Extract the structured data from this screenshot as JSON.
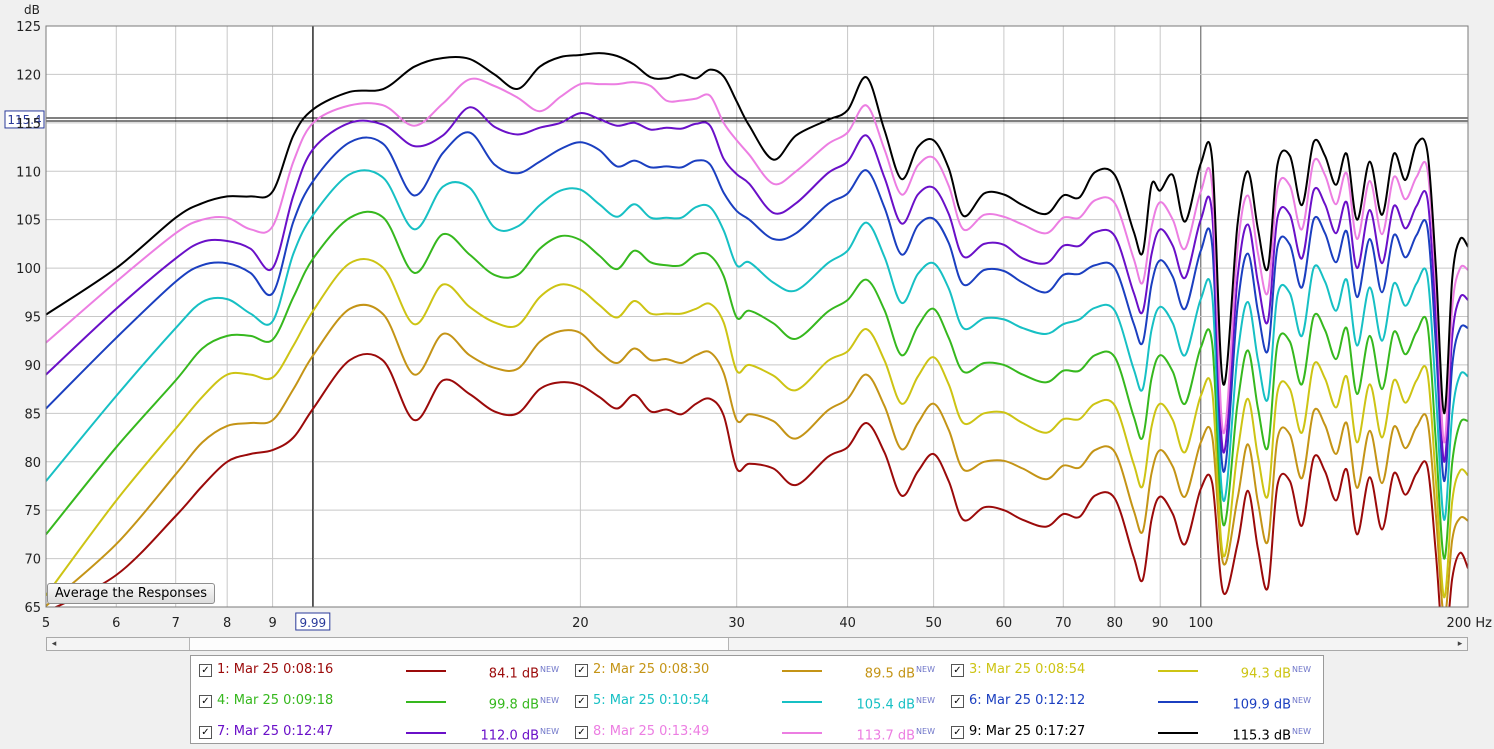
{
  "chart_data": {
    "type": "line",
    "ylabel": "dB",
    "xunit": "Hz",
    "xscale": "log",
    "xlim": [
      5,
      200
    ],
    "ylim": [
      65,
      125
    ],
    "yticks": [
      65,
      70,
      75,
      80,
      85,
      90,
      95,
      100,
      105,
      110,
      115,
      120,
      125
    ],
    "xticks": [
      5,
      6,
      7,
      8,
      9,
      20,
      30,
      40,
      50,
      60,
      70,
      80,
      90,
      100,
      200
    ],
    "xtick_labels": [
      "5",
      "6",
      "7",
      "8",
      "9",
      "20",
      "30",
      "40",
      "50",
      "60",
      "70",
      "80",
      "90",
      "100",
      "200 Hz"
    ],
    "grid": true,
    "cursor": {
      "x": 9.99,
      "x_label": "9.99",
      "y": 115.4,
      "y_label": "115.4"
    },
    "x": [
      5,
      6,
      7,
      7.5,
      8,
      8.5,
      9,
      9.5,
      10,
      11,
      12,
      13,
      14,
      15,
      16,
      17,
      18,
      19,
      20,
      21,
      22,
      23,
      24,
      25,
      26,
      27,
      28,
      29,
      30,
      31,
      33,
      35,
      38,
      40,
      42,
      44,
      46,
      48,
      50,
      52,
      54,
      57,
      60,
      63,
      67,
      70,
      73,
      76,
      80,
      84,
      86,
      88,
      90,
      93,
      96,
      100,
      103,
      106,
      110,
      113,
      116,
      119,
      122,
      126,
      130,
      134,
      138,
      142,
      146,
      150,
      155,
      160,
      165,
      170,
      175,
      180,
      184,
      188,
      192,
      196,
      200
    ],
    "series": [
      {
        "name": "1: Mar 25 0:08:16",
        "value_label": "84.1 dB",
        "color": "#9b0a0a",
        "values": [
          64.5,
          68.3,
          74.4,
          77.5,
          80.0,
          80.8,
          81.2,
          82.5,
          85.5,
          90.5,
          90.4,
          84.3,
          88.4,
          87.0,
          85.2,
          85.0,
          87.5,
          88.2,
          87.9,
          86.7,
          85.5,
          86.9,
          85.2,
          85.4,
          84.9,
          86.0,
          86.5,
          84.8,
          79.3,
          79.8,
          79.3,
          77.6,
          80.5,
          81.5,
          84.0,
          81.0,
          76.5,
          79.0,
          80.8,
          78.0,
          74.0,
          75.3,
          75.0,
          74.0,
          73.3,
          74.6,
          74.3,
          76.5,
          76.2,
          70.2,
          67.8,
          74.0,
          76.4,
          74.6,
          71.5,
          77.2,
          77.8,
          66.5,
          71.5,
          77.0,
          71.0,
          67.0,
          77.6,
          78.0,
          73.4,
          80.4,
          79.0,
          76.0,
          79.2,
          72.5,
          78.4,
          73.0,
          78.8,
          76.6,
          78.8,
          79.5,
          70.5,
          60.5,
          68.0,
          70.6,
          69.0
        ]
      },
      {
        "name": "2: Mar 25 0:08:30",
        "value_label": "89.5 dB",
        "color": "#c49416",
        "values": [
          65.1,
          71.5,
          78.7,
          82.0,
          83.7,
          84.0,
          84.3,
          87.5,
          91.0,
          95.8,
          95.2,
          89.0,
          93.2,
          91.0,
          89.7,
          89.6,
          92.4,
          93.5,
          93.3,
          91.4,
          90.2,
          91.7,
          90.5,
          90.6,
          90.2,
          91.0,
          91.3,
          89.2,
          84.3,
          84.9,
          84.2,
          82.4,
          85.3,
          86.5,
          89.0,
          85.8,
          81.3,
          84.0,
          86.0,
          83.3,
          79.2,
          80.0,
          80.1,
          79.3,
          78.2,
          79.6,
          79.4,
          81.2,
          81.0,
          75.0,
          72.8,
          78.8,
          81.2,
          79.5,
          76.4,
          82.0,
          82.6,
          69.5,
          76.2,
          81.8,
          75.8,
          71.8,
          82.4,
          82.8,
          78.3,
          85.2,
          83.8,
          80.8,
          84.0,
          77.3,
          83.2,
          77.8,
          83.6,
          81.4,
          83.6,
          84.3,
          74.5,
          64.0,
          72.0,
          74.2,
          73.9
        ]
      },
      {
        "name": "3: Mar 25 0:08:54",
        "value_label": "94.3 dB",
        "color": "#cdc414",
        "values": [
          66.2,
          76.0,
          83.4,
          86.7,
          89.0,
          89.0,
          88.7,
          92.0,
          95.6,
          100.5,
          100.0,
          94.2,
          98.3,
          96.0,
          94.4,
          94.1,
          97.0,
          98.3,
          97.8,
          96.2,
          94.9,
          96.6,
          95.3,
          95.3,
          95.3,
          95.8,
          96.3,
          94.4,
          89.4,
          90.0,
          88.9,
          87.4,
          90.4,
          91.4,
          93.7,
          90.5,
          86.0,
          88.8,
          90.8,
          88.0,
          84.0,
          85.0,
          85.1,
          84.0,
          83.0,
          84.4,
          84.4,
          86.0,
          85.8,
          79.8,
          77.5,
          83.6,
          86.0,
          84.3,
          81.0,
          86.8,
          87.3,
          70.3,
          81.0,
          86.5,
          80.5,
          76.5,
          87.2,
          87.5,
          83.0,
          90.0,
          88.6,
          85.6,
          88.8,
          82.0,
          88.0,
          82.5,
          88.4,
          86.1,
          88.4,
          89.2,
          78.0,
          66.0,
          76.0,
          79.1,
          78.6
        ]
      },
      {
        "name": "4: Mar 25 0:09:18",
        "value_label": "99.8 dB",
        "color": "#36b81e",
        "values": [
          72.5,
          81.5,
          88.4,
          91.7,
          93.0,
          93.0,
          92.6,
          97.0,
          101.0,
          105.2,
          105.2,
          99.5,
          103.5,
          101.4,
          99.3,
          99.3,
          102.0,
          103.3,
          102.9,
          101.3,
          99.9,
          101.8,
          100.6,
          100.3,
          100.3,
          101.4,
          101.3,
          99.2,
          94.9,
          95.6,
          94.3,
          92.7,
          95.5,
          96.7,
          98.8,
          95.7,
          91.0,
          94.0,
          95.8,
          92.8,
          89.3,
          90.2,
          90.0,
          89.0,
          88.2,
          89.4,
          89.4,
          91.0,
          90.8,
          84.7,
          82.5,
          88.6,
          91.0,
          89.3,
          86.0,
          91.8,
          92.2,
          73.5,
          86.0,
          91.5,
          85.5,
          81.5,
          92.2,
          92.4,
          88.0,
          95.0,
          93.6,
          90.6,
          93.8,
          87.0,
          93.0,
          87.5,
          93.4,
          91.1,
          93.4,
          94.2,
          82.0,
          70.0,
          80.0,
          84.0,
          84.2
        ]
      },
      {
        "name": "5: Mar 25 0:10:54",
        "value_label": "105.4 dB",
        "color": "#17c0c4",
        "values": [
          78.0,
          86.8,
          93.8,
          96.5,
          96.8,
          95.3,
          94.5,
          101.5,
          105.5,
          109.7,
          109.3,
          104.0,
          108.4,
          108.3,
          104.2,
          104.3,
          106.5,
          108.0,
          108.1,
          106.6,
          105.3,
          106.6,
          105.2,
          105.2,
          105.2,
          106.3,
          106.3,
          103.9,
          100.3,
          100.6,
          98.5,
          97.7,
          100.5,
          101.8,
          104.7,
          101.2,
          96.4,
          99.4,
          100.5,
          97.9,
          93.8,
          94.8,
          94.7,
          93.8,
          93.2,
          94.2,
          94.7,
          95.9,
          95.6,
          89.6,
          87.5,
          93.6,
          96.0,
          94.3,
          91.0,
          96.8,
          97.2,
          76.0,
          91.0,
          96.5,
          90.5,
          86.5,
          97.2,
          97.4,
          93.0,
          100.0,
          98.6,
          95.6,
          98.8,
          92.0,
          98.0,
          92.5,
          98.4,
          96.1,
          98.4,
          99.2,
          87.0,
          74.0,
          85.0,
          89.0,
          88.8
        ]
      },
      {
        "name": "6: Mar 25 0:12:12",
        "value_label": "109.9 dB",
        "color": "#1b3fc0",
        "values": [
          85.5,
          92.8,
          98.6,
          100.3,
          100.5,
          99.5,
          97.4,
          104.8,
          109.0,
          113.0,
          112.8,
          107.5,
          111.9,
          114.0,
          110.7,
          109.8,
          111.0,
          112.3,
          113.0,
          112.2,
          110.5,
          111.1,
          110.4,
          110.5,
          110.4,
          111.1,
          110.7,
          107.8,
          105.9,
          105.0,
          103.0,
          103.6,
          106.6,
          107.7,
          110.1,
          106.3,
          101.4,
          104.4,
          105.1,
          102.6,
          98.3,
          99.8,
          99.7,
          98.5,
          97.5,
          99.3,
          99.4,
          100.3,
          100.0,
          94.3,
          92.3,
          98.3,
          100.8,
          99.1,
          95.8,
          101.8,
          102.3,
          79.0,
          96.0,
          101.5,
          95.5,
          91.5,
          102.2,
          102.4,
          98.0,
          105.0,
          103.6,
          100.6,
          103.8,
          97.0,
          103.0,
          97.5,
          103.4,
          101.1,
          103.4,
          104.2,
          92.0,
          78.0,
          90.0,
          93.8,
          93.8
        ]
      },
      {
        "name": "7: Mar 25 0:12:47",
        "value_label": "112.0 dB",
        "color": "#6a10c8",
        "values": [
          89.0,
          95.8,
          101.0,
          102.7,
          102.8,
          102.0,
          100.0,
          107.5,
          112.3,
          115.0,
          114.8,
          112.6,
          113.7,
          116.6,
          114.6,
          113.8,
          114.5,
          115.0,
          116.0,
          115.4,
          114.7,
          115.0,
          114.3,
          114.5,
          114.4,
          114.9,
          114.7,
          111.3,
          109.7,
          108.7,
          105.7,
          106.7,
          109.8,
          111.0,
          113.7,
          109.4,
          104.6,
          107.6,
          108.3,
          105.6,
          101.2,
          102.5,
          102.4,
          101.0,
          100.5,
          102.3,
          102.3,
          103.7,
          103.3,
          97.5,
          95.5,
          101.4,
          104.0,
          102.3,
          99.0,
          105.0,
          105.5,
          81.0,
          99.0,
          104.5,
          98.5,
          94.5,
          105.2,
          105.5,
          101.0,
          108.0,
          106.6,
          103.6,
          106.8,
          100.0,
          106.0,
          100.5,
          106.4,
          104.1,
          106.4,
          107.2,
          95.0,
          80.0,
          93.0,
          97.0,
          96.7
        ]
      },
      {
        "name": "8: Mar 25 0:13:49",
        "value_label": "113.7 dB",
        "color": "#ec7ee2",
        "values": [
          92.3,
          98.6,
          103.6,
          105.0,
          105.2,
          104.0,
          104.3,
          111.0,
          115.0,
          116.8,
          116.8,
          114.7,
          117.0,
          119.5,
          118.8,
          117.6,
          116.2,
          117.7,
          119.0,
          119.0,
          119.0,
          119.2,
          118.8,
          117.3,
          117.3,
          117.5,
          117.8,
          115.0,
          113.2,
          111.7,
          108.7,
          110.0,
          112.8,
          114.0,
          116.8,
          112.3,
          107.6,
          110.6,
          111.4,
          108.5,
          104.0,
          105.5,
          105.3,
          104.5,
          103.6,
          105.2,
          105.2,
          107.0,
          106.7,
          101.0,
          98.5,
          104.2,
          106.8,
          105.0,
          102.0,
          107.9,
          108.4,
          83.0,
          102.0,
          107.5,
          101.5,
          97.5,
          108.2,
          108.5,
          104.0,
          111.0,
          109.6,
          106.6,
          109.8,
          103.0,
          109.0,
          103.5,
          109.4,
          107.1,
          109.4,
          110.2,
          98.0,
          82.0,
          96.0,
          100.0,
          99.8
        ]
      },
      {
        "name": "9: Mar 25 0:17:27",
        "value_label": "115.3 dB",
        "color": "#000000",
        "values": [
          95.2,
          100.0,
          105.2,
          106.7,
          107.4,
          107.4,
          107.9,
          113.7,
          116.4,
          118.2,
          118.5,
          120.8,
          121.7,
          121.6,
          120.0,
          118.5,
          120.8,
          121.8,
          122.0,
          122.2,
          121.9,
          121.0,
          119.7,
          119.6,
          120.0,
          119.6,
          120.5,
          119.8,
          117.2,
          114.7,
          111.2,
          113.7,
          115.3,
          116.3,
          119.7,
          114.3,
          109.2,
          112.5,
          113.2,
          110.3,
          105.4,
          107.7,
          107.6,
          106.5,
          105.6,
          107.5,
          107.3,
          109.9,
          109.6,
          103.8,
          101.6,
          108.6,
          108.0,
          109.6,
          104.8,
          110.8,
          111.2,
          88.0,
          104.5,
          110.0,
          104.0,
          100.0,
          110.7,
          111.6,
          106.5,
          113.0,
          111.6,
          108.6,
          111.8,
          105.0,
          111.0,
          105.5,
          111.8,
          109.1,
          112.8,
          112.0,
          100.0,
          85.0,
          99.0,
          103.0,
          102.2
        ]
      }
    ]
  },
  "legend": {
    "new_badge": "NEW",
    "checkmark": "✓"
  },
  "button": {
    "average_label": "Average the Responses"
  },
  "scrollbar": {
    "left_arrow": "◂",
    "right_arrow": "▸"
  }
}
